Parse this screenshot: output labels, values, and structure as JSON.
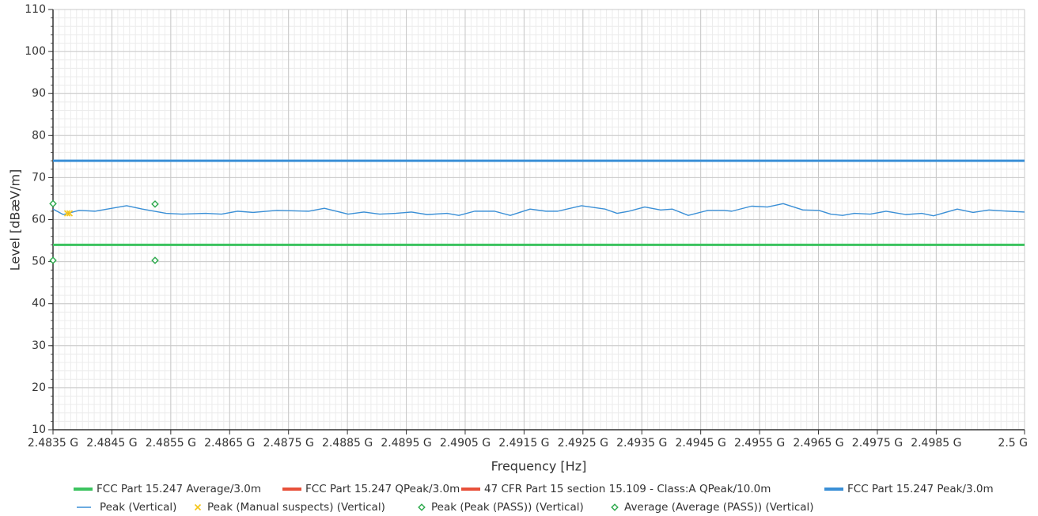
{
  "chart_data": {
    "type": "line",
    "xlabel": "Frequency [Hz]",
    "ylabel": "Level [dBæV/m]",
    "xlim": [
      2483500000,
      2500000000
    ],
    "xticks": [
      {
        "value": 2483500000,
        "label": "2.4835 G"
      },
      {
        "value": 2484500000,
        "label": "2.4845 G"
      },
      {
        "value": 2485500000,
        "label": "2.4855 G"
      },
      {
        "value": 2486500000,
        "label": "2.4865 G"
      },
      {
        "value": 2487500000,
        "label": "2.4875 G"
      },
      {
        "value": 2488500000,
        "label": "2.4885 G"
      },
      {
        "value": 2489500000,
        "label": "2.4895 G"
      },
      {
        "value": 2490500000,
        "label": "2.4905 G"
      },
      {
        "value": 2491500000,
        "label": "2.4915 G"
      },
      {
        "value": 2492500000,
        "label": "2.4925 G"
      },
      {
        "value": 2493500000,
        "label": "2.4935 G"
      },
      {
        "value": 2494500000,
        "label": "2.4945 G"
      },
      {
        "value": 2495500000,
        "label": "2.4955 G"
      },
      {
        "value": 2496500000,
        "label": "2.4965 G"
      },
      {
        "value": 2497500000,
        "label": "2.4975 G"
      },
      {
        "value": 2498500000,
        "label": "2.4985 G"
      },
      {
        "value": 2500000000,
        "label": "2.5 G"
      }
    ],
    "ylim": [
      10,
      110
    ],
    "yticks": [
      10,
      20,
      30,
      40,
      50,
      60,
      70,
      80,
      90,
      100,
      110
    ],
    "grid": true,
    "series": [
      {
        "name": "FCC Part 15.247 Average/3.0m",
        "color": "#3cc35f",
        "marker": "thick",
        "x": [
          2483500000,
          2500000000
        ],
        "values": [
          54,
          54
        ]
      },
      {
        "name": "FCC Part 15.247 QPeak/3.0m",
        "color": "#e8503a",
        "marker": "thick",
        "x": [],
        "values": []
      },
      {
        "name": "47 CFR Part 15 section 15.109 - Class:A QPeak/10.0m",
        "color": "#e8503a",
        "marker": "thick",
        "x": [],
        "values": []
      },
      {
        "name": "FCC Part 15.247 Peak/3.0m",
        "color": "#3a8fd6",
        "marker": "thick",
        "x": [
          2483500000,
          2500000000
        ],
        "values": [
          74,
          74
        ]
      },
      {
        "name": "Peak (Vertical)",
        "color": "#3a8fd6",
        "marker": "line",
        "x": [
          2483500000,
          2483675000,
          2483943000,
          2484212000,
          2484750000,
          2485018000,
          2485421000,
          2485690000,
          2486093000,
          2486362000,
          2486631000,
          2486899000,
          2487302000,
          2487840000,
          2488109000,
          2488512000,
          2488780000,
          2489049000,
          2489318000,
          2489587000,
          2489855000,
          2490191000,
          2490393000,
          2490661000,
          2490997000,
          2491266000,
          2491602000,
          2491871000,
          2492072000,
          2492475000,
          2492878000,
          2493080000,
          2493281000,
          2493550000,
          2493819000,
          2494020000,
          2494289000,
          2494625000,
          2494894000,
          2495028000,
          2495364000,
          2495633000,
          2495901000,
          2496237000,
          2496506000,
          2496708000,
          2496909000,
          2497111000,
          2497379000,
          2497648000,
          2497984000,
          2498253000,
          2498454000,
          2498857000,
          2499126000,
          2499395000,
          2499596000,
          2500000000
        ],
        "values": [
          62.5,
          61.2,
          62.2,
          62.0,
          63.3,
          62.5,
          61.5,
          61.3,
          61.5,
          61.3,
          62.0,
          61.7,
          62.2,
          62.0,
          62.7,
          61.3,
          61.8,
          61.3,
          61.5,
          61.8,
          61.2,
          61.5,
          61.0,
          62.0,
          62.0,
          61.0,
          62.5,
          62.0,
          62.0,
          63.3,
          62.5,
          61.5,
          62.0,
          63.0,
          62.3,
          62.5,
          61.0,
          62.2,
          62.2,
          62.0,
          63.2,
          63.0,
          63.8,
          62.3,
          62.2,
          61.3,
          61.0,
          61.5,
          61.3,
          62.0,
          61.2,
          61.5,
          60.9,
          62.5,
          61.7,
          62.3,
          62.1,
          61.8
        ]
      },
      {
        "name": "Peak (Manual suspects) (Vertical)",
        "color": "#f5c518",
        "marker": "cross",
        "x": [
          2483742000,
          2483782000
        ],
        "values": [
          61.5,
          61.5
        ]
      },
      {
        "name": "Peak (Peak (PASS)) (Vertical)",
        "color": "#2aa84a",
        "marker": "diamond",
        "x": [
          2483500000,
          2485233000
        ],
        "values": [
          63.8,
          63.7
        ]
      },
      {
        "name": "Average (Average (PASS)) (Vertical)",
        "color": "#2aa84a",
        "marker": "diamond",
        "x": [
          2483500000,
          2485233000
        ],
        "values": [
          50.3,
          50.3
        ]
      }
    ]
  }
}
